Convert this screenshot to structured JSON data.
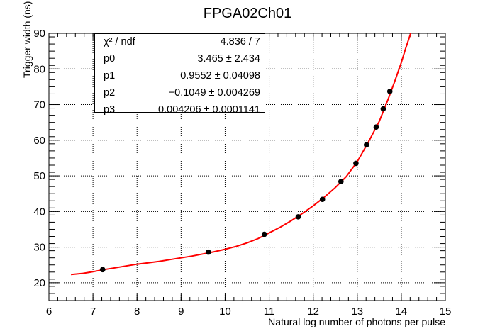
{
  "chart_data": {
    "type": "scatter",
    "title": "FPGA02Ch01",
    "xlabel": "Natural log number of photons per pulse",
    "ylabel": "Trigger width (ns)",
    "xlim": [
      6,
      15
    ],
    "ylim": [
      15,
      90
    ],
    "xticks": [
      "6",
      "7",
      "8",
      "9",
      "10",
      "11",
      "12",
      "13",
      "14",
      "15"
    ],
    "yticks": [
      "20",
      "30",
      "40",
      "50",
      "60",
      "70",
      "80",
      "90"
    ],
    "grid": true,
    "points": {
      "x": [
        7.22,
        9.62,
        10.89,
        11.66,
        12.21,
        12.63,
        12.97,
        13.21,
        13.43,
        13.59,
        13.74
      ],
      "y": [
        23.7,
        28.6,
        33.6,
        38.5,
        43.4,
        48.4,
        53.5,
        58.7,
        63.7,
        68.8,
        73.7
      ]
    },
    "fit": {
      "color": "#ff0000",
      "x": [
        6.5,
        6.75,
        7.0,
        7.25,
        7.5,
        7.75,
        8.0,
        8.25,
        8.5,
        8.75,
        9.0,
        9.25,
        9.5,
        9.75,
        10.0,
        10.25,
        10.5,
        10.75,
        11.0,
        11.25,
        11.5,
        11.75,
        12.0,
        12.25,
        12.5,
        12.75,
        13.0,
        13.25,
        13.5,
        13.7,
        13.85,
        14.0,
        14.1,
        14.2,
        14.3
      ],
      "y": [
        22.3,
        22.6,
        23.1,
        23.7,
        24.2,
        24.7,
        25.2,
        25.6,
        26.0,
        26.5,
        27.0,
        27.5,
        28.1,
        28.7,
        29.4,
        30.2,
        31.2,
        32.4,
        34.0,
        35.6,
        37.4,
        39.4,
        41.6,
        44.0,
        46.7,
        49.8,
        54.0,
        59.4,
        65.3,
        71.5,
        76.5,
        81.8,
        85.8,
        89.5,
        93.0
      ]
    }
  },
  "stats": {
    "rows": [
      {
        "name": "χ² / ndf",
        "value": "4.836 / 7"
      },
      {
        "name": "p0",
        "value": "3.465 ± 2.434"
      },
      {
        "name": "p1",
        "value": "0.9552 ± 0.04098"
      },
      {
        "name": "p2",
        "value": "−0.1049 ± 0.004269"
      },
      {
        "name": "p3",
        "value": "0.004206 ± 0.0001141"
      }
    ]
  }
}
